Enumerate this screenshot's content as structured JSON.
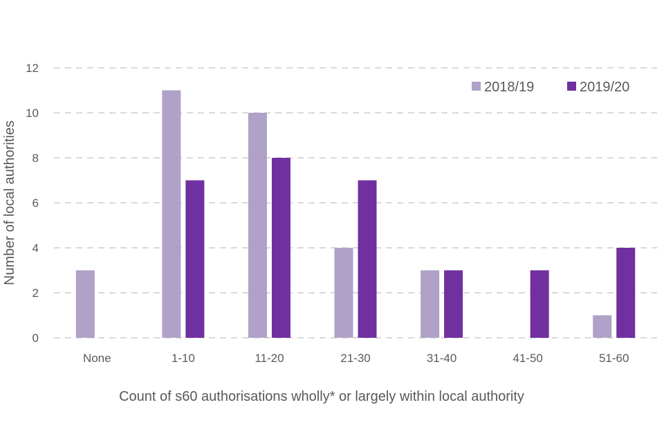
{
  "chart_data": {
    "type": "bar",
    "title": "",
    "xlabel": "Count of s60 authorisations wholly* or largely within local authority",
    "ylabel": "Number of local authorities",
    "ylim": [
      0,
      12
    ],
    "yticks": [
      0,
      2,
      4,
      6,
      8,
      10,
      12
    ],
    "grid": true,
    "legend_position": "top-right",
    "categories": [
      "None",
      "1-10",
      "11-20",
      "21-30",
      "31-40",
      "41-50",
      "51-60"
    ],
    "series": [
      {
        "name": "2018/19",
        "color": "#b0a1c9",
        "values": [
          3,
          11,
          10,
          4,
          3,
          0,
          1
        ]
      },
      {
        "name": "2019/20",
        "color": "#7030a0",
        "values": [
          0,
          7,
          8,
          7,
          3,
          3,
          4
        ]
      }
    ]
  }
}
